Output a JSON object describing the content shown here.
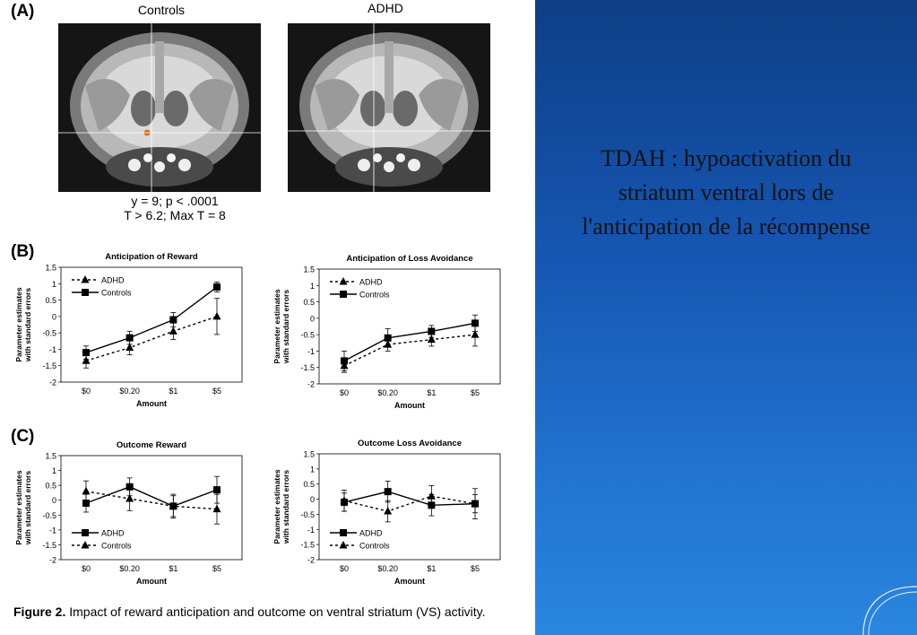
{
  "panel_labels": {
    "a": "(A)",
    "b": "(B)",
    "c": "(C)"
  },
  "brain": {
    "controls_label": "Controls",
    "adhd_label": "ADHD",
    "stat_line1": "y = 9; p < .0001",
    "stat_line2": "T > 6.2; Max T = 8"
  },
  "caption": {
    "lead": "Figure 2.",
    "text": " Impact of reward anticipation and outcome on ventral striatum (VS) activity."
  },
  "slide": {
    "text": "TDAH : hypoactivation du striatum ventral lors de l'anticipation de la récompense"
  },
  "colors": {
    "background_blue": "#1656b2",
    "line": "#000000"
  },
  "chart_data": [
    {
      "type": "line",
      "title": "Anticipation of Reward",
      "xlabel": "Amount",
      "ylabel": "Parameter estimates with standard errors",
      "categories": [
        "$0",
        "$0.20",
        "$1",
        "$5"
      ],
      "ylim": [
        -2,
        1.5
      ],
      "yticks": [
        "1.5",
        "1",
        "0.5",
        "0",
        "-0.5",
        "-1",
        "-1.5",
        "-2"
      ],
      "legend_position": "top-left",
      "series": [
        {
          "name": "ADHD",
          "style": "dashed",
          "marker": "triangle",
          "values": [
            -1.35,
            -0.95,
            -0.45,
            0.0
          ],
          "err": [
            0.22,
            0.22,
            0.25,
            0.55
          ]
        },
        {
          "name": "Controls",
          "style": "solid",
          "marker": "square",
          "values": [
            -1.1,
            -0.65,
            -0.1,
            0.9
          ],
          "err": [
            0.2,
            0.2,
            0.22,
            0.15
          ]
        }
      ]
    },
    {
      "type": "line",
      "title": "Anticipation of Loss Avoidance",
      "xlabel": "Amount",
      "ylabel": "Parameter estimates with standard errors",
      "categories": [
        "$0",
        "$0.20",
        "$1",
        "$5"
      ],
      "ylim": [
        -2,
        1.5
      ],
      "yticks": [
        "1.5",
        "1",
        "0.5",
        "0",
        "-0.5",
        "-1",
        "-1.5",
        "-2"
      ],
      "legend_position": "top-left",
      "series": [
        {
          "name": "ADHD",
          "style": "dashed",
          "marker": "triangle",
          "values": [
            -1.45,
            -0.8,
            -0.65,
            -0.5
          ],
          "err": [
            0.2,
            0.2,
            0.2,
            0.35
          ]
        },
        {
          "name": "Controls",
          "style": "solid",
          "marker": "square",
          "values": [
            -1.3,
            -0.6,
            -0.4,
            -0.15
          ],
          "err": [
            0.3,
            0.28,
            0.18,
            0.25
          ]
        }
      ]
    },
    {
      "type": "line",
      "title": "Outcome Reward",
      "xlabel": "Amount",
      "ylabel": "Parameter estimates with standard errors",
      "categories": [
        "$0",
        "$0.20",
        "$1",
        "$5"
      ],
      "ylim": [
        -2,
        1.5
      ],
      "yticks": [
        "1.5",
        "1",
        "0.5",
        "0",
        "-0.5",
        "-1",
        "-1.5",
        "-2"
      ],
      "legend_position": "bottom-left",
      "series": [
        {
          "name": "ADHD",
          "style": "solid",
          "marker": "square",
          "values": [
            -0.1,
            0.45,
            -0.2,
            0.35
          ],
          "err": [
            0.3,
            0.3,
            0.4,
            0.45
          ]
        },
        {
          "name": "Controls",
          "style": "dashed",
          "marker": "triangle",
          "values": [
            0.3,
            0.05,
            -0.2,
            -0.3
          ],
          "err": [
            0.35,
            0.4,
            0.35,
            0.5
          ]
        }
      ]
    },
    {
      "type": "line",
      "title": "Outcome Loss Avoidance",
      "xlabel": "Amount",
      "ylabel": "Parameter estimates with standard errors",
      "categories": [
        "$0",
        "$0.20",
        "$1",
        "$5"
      ],
      "ylim": [
        -2,
        1.5
      ],
      "yticks": [
        "1.5",
        "1",
        "0.5",
        "0",
        "-0.5",
        "-1",
        "-1.5",
        "-2"
      ],
      "legend_position": "bottom-left",
      "series": [
        {
          "name": "ADHD",
          "style": "solid",
          "marker": "square",
          "values": [
            -0.1,
            0.25,
            -0.2,
            -0.15
          ],
          "err": [
            0.3,
            0.35,
            0.35,
            0.3
          ]
        },
        {
          "name": "Controls",
          "style": "dashed",
          "marker": "triangle",
          "values": [
            -0.05,
            -0.4,
            0.1,
            -0.15
          ],
          "err": [
            0.35,
            0.35,
            0.35,
            0.5
          ]
        }
      ]
    }
  ]
}
